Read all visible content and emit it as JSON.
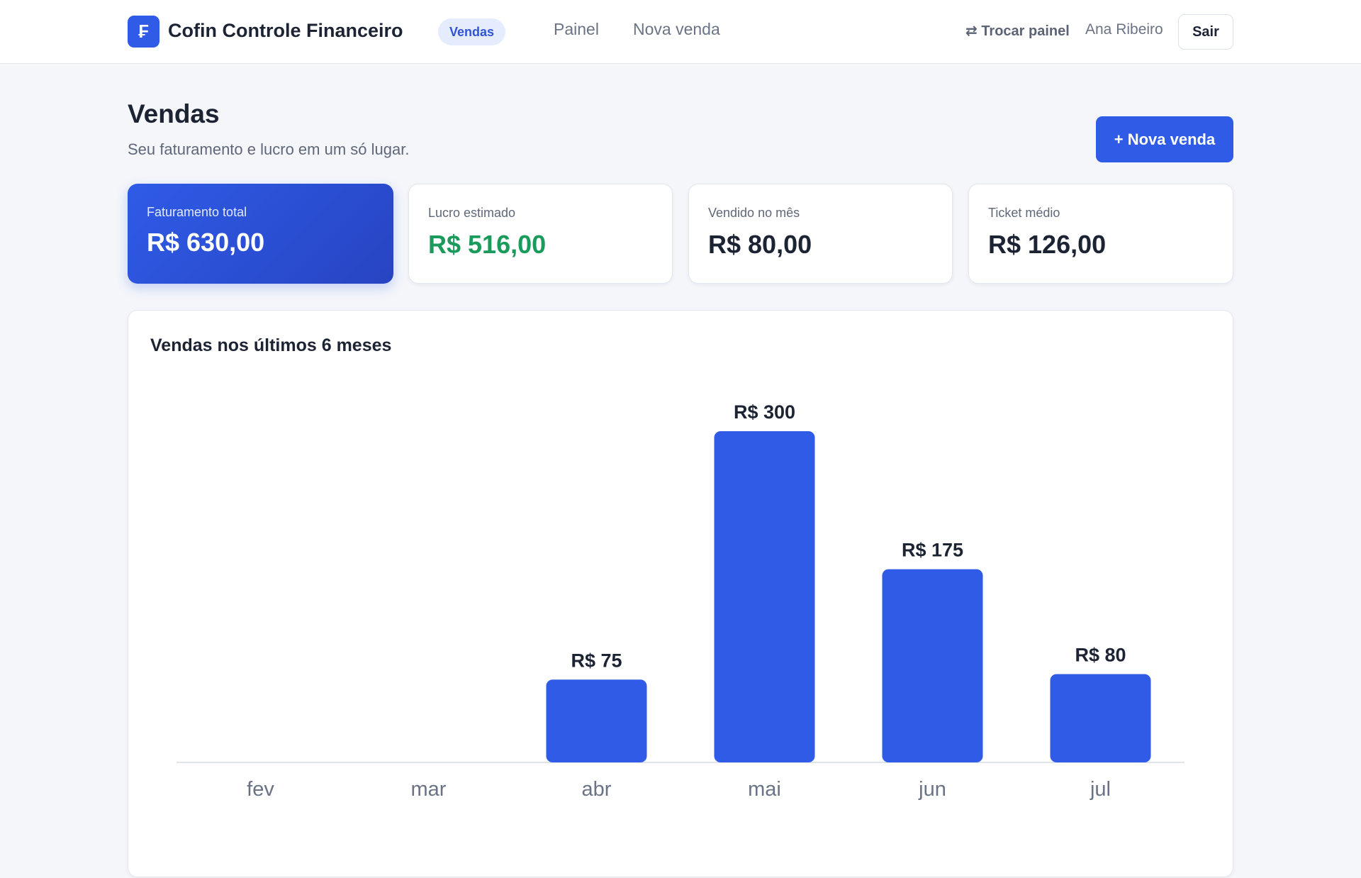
{
  "header": {
    "logo_glyph": "₣",
    "app_name": "Cofin Controle Financeiro",
    "section_badge": "Vendas",
    "nav": [
      {
        "label": "Painel"
      },
      {
        "label": "Nova venda"
      }
    ],
    "swap_panel": "⇄ Trocar painel",
    "user_name": "Ana Ribeiro",
    "logout_label": "Sair"
  },
  "page": {
    "title": "Vendas",
    "subtitle": "Seu faturamento e lucro em um só lugar.",
    "new_sale_label": "+ Nova venda"
  },
  "kpis": [
    {
      "label": "Faturamento total",
      "value": "R$ 630,00"
    },
    {
      "label": "Lucro estimado",
      "value": "R$ 516,00"
    },
    {
      "label": "Vendido no mês",
      "value": "R$ 80,00"
    },
    {
      "label": "Ticket médio",
      "value": "R$ 126,00"
    }
  ],
  "colors": {
    "accent": "#2f5be7",
    "profit": "#1a9a5b"
  },
  "chart_data": {
    "type": "bar",
    "title": "Vendas nos últimos 6 meses",
    "categories": [
      "fev",
      "mar",
      "abr",
      "mai",
      "jun",
      "jul"
    ],
    "values": [
      0,
      0,
      75,
      300,
      175,
      80
    ],
    "value_labels": [
      "",
      "",
      "R$ 75",
      "R$ 300",
      "R$ 175",
      "R$ 80"
    ],
    "ylim": [
      0,
      300
    ],
    "grid": false,
    "legend": "none"
  }
}
